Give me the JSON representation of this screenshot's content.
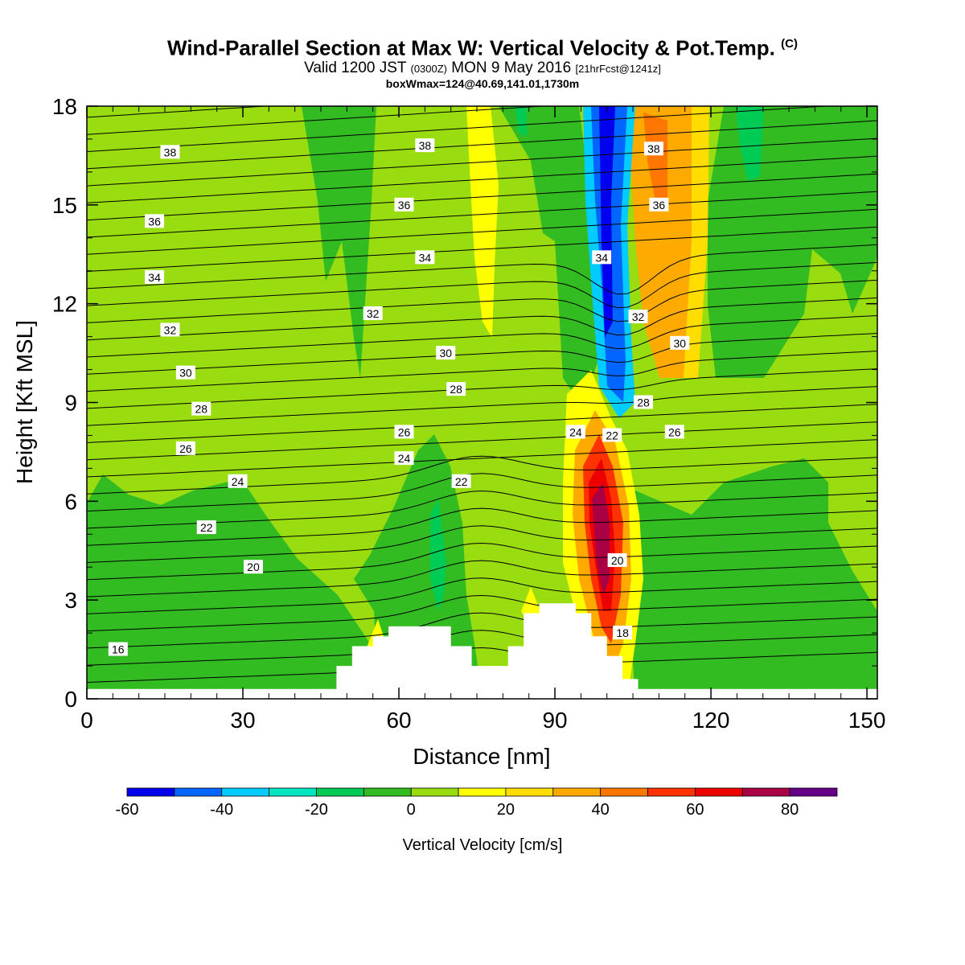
{
  "title": {
    "main": "Wind-Parallel Section at Max W: Vertical Velocity & Pot.Temp.",
    "copyright": "(C)",
    "valid_prefix": "Valid 1200 JST",
    "valid_utc": "(0300Z)",
    "valid_date": "MON 9 May 2016",
    "forecast": "[21hrFcst@1241z]",
    "box": "boxWmax=124@40.69,141.01,1730m"
  },
  "chart_data": {
    "type": "heatmap",
    "xlabel": "Distance [nm]",
    "ylabel": "Height [Kft MSL]",
    "xlim": [
      0,
      152
    ],
    "ylim": [
      0,
      18
    ],
    "x_ticks": [
      "0",
      "30",
      "60",
      "90",
      "120",
      "150"
    ],
    "y_ticks": [
      "0",
      "3",
      "6",
      "9",
      "12",
      "15",
      "18"
    ],
    "colorbar": {
      "title": "Vertical Velocity [cm/s]",
      "levels": [
        -60,
        -50,
        -40,
        -30,
        -20,
        -10,
        0,
        10,
        20,
        30,
        40,
        50,
        60,
        70,
        80,
        90
      ],
      "tick_labels": [
        "-60",
        "-40",
        "-20",
        "0",
        "20",
        "40",
        "60",
        "80"
      ],
      "colors": [
        "#0000ee",
        "#0066ff",
        "#00ccff",
        "#00e6c0",
        "#00cc55",
        "#33bb22",
        "#99dd11",
        "#ffff00",
        "#ffdd00",
        "#ffaa00",
        "#ff7700",
        "#ff3300",
        "#ee0000",
        "#aa0044",
        "#660088"
      ]
    },
    "terrain_kft": [
      [
        0,
        0.3
      ],
      [
        48,
        0.3
      ],
      [
        48,
        1.0
      ],
      [
        51,
        1.0
      ],
      [
        51,
        1.6
      ],
      [
        55,
        1.6
      ],
      [
        55,
        1.9
      ],
      [
        58,
        1.9
      ],
      [
        58,
        2.2
      ],
      [
        70,
        2.2
      ],
      [
        70,
        1.6
      ],
      [
        74,
        1.6
      ],
      [
        74,
        1.0
      ],
      [
        81,
        1.0
      ],
      [
        81,
        1.6
      ],
      [
        84,
        1.6
      ],
      [
        84,
        2.6
      ],
      [
        87,
        2.6
      ],
      [
        87,
        2.9
      ],
      [
        94,
        2.9
      ],
      [
        94,
        2.6
      ],
      [
        97,
        2.6
      ],
      [
        97,
        1.9
      ],
      [
        100,
        1.9
      ],
      [
        100,
        1.3
      ],
      [
        103,
        1.3
      ],
      [
        103,
        0.6
      ],
      [
        106,
        0.6
      ],
      [
        106,
        0.3
      ],
      [
        152,
        0.3
      ]
    ],
    "theta_labels": [
      {
        "x": 16,
        "y": 16.6,
        "text": "38"
      },
      {
        "x": 65,
        "y": 16.8,
        "text": "38"
      },
      {
        "x": 109,
        "y": 16.7,
        "text": "38"
      },
      {
        "x": 13,
        "y": 14.5,
        "text": "36"
      },
      {
        "x": 61,
        "y": 15.0,
        "text": "36"
      },
      {
        "x": 110,
        "y": 15.0,
        "text": "36"
      },
      {
        "x": 13,
        "y": 12.8,
        "text": "34"
      },
      {
        "x": 65,
        "y": 13.4,
        "text": "34"
      },
      {
        "x": 99,
        "y": 13.4,
        "text": "34"
      },
      {
        "x": 16,
        "y": 11.2,
        "text": "32"
      },
      {
        "x": 55,
        "y": 11.7,
        "text": "32"
      },
      {
        "x": 106,
        "y": 11.6,
        "text": "32"
      },
      {
        "x": 19,
        "y": 9.9,
        "text": "30"
      },
      {
        "x": 69,
        "y": 10.5,
        "text": "30"
      },
      {
        "x": 114,
        "y": 10.8,
        "text": "30"
      },
      {
        "x": 22,
        "y": 8.8,
        "text": "28"
      },
      {
        "x": 71,
        "y": 9.4,
        "text": "28"
      },
      {
        "x": 107,
        "y": 9.0,
        "text": "28"
      },
      {
        "x": 19,
        "y": 7.6,
        "text": "26"
      },
      {
        "x": 61,
        "y": 8.1,
        "text": "26"
      },
      {
        "x": 113,
        "y": 8.1,
        "text": "26"
      },
      {
        "x": 29,
        "y": 6.6,
        "text": "24"
      },
      {
        "x": 61,
        "y": 7.3,
        "text": "24"
      },
      {
        "x": 94,
        "y": 8.1,
        "text": "24"
      },
      {
        "x": 23,
        "y": 5.2,
        "text": "22"
      },
      {
        "x": 72,
        "y": 6.6,
        "text": "22"
      },
      {
        "x": 101,
        "y": 8.0,
        "text": "22"
      },
      {
        "x": 32,
        "y": 4.0,
        "text": "20"
      },
      {
        "x": 102,
        "y": 4.2,
        "text": "20"
      },
      {
        "x": 6,
        "y": 1.5,
        "text": "16"
      },
      {
        "x": 103,
        "y": 2.0,
        "text": "18"
      }
    ]
  }
}
